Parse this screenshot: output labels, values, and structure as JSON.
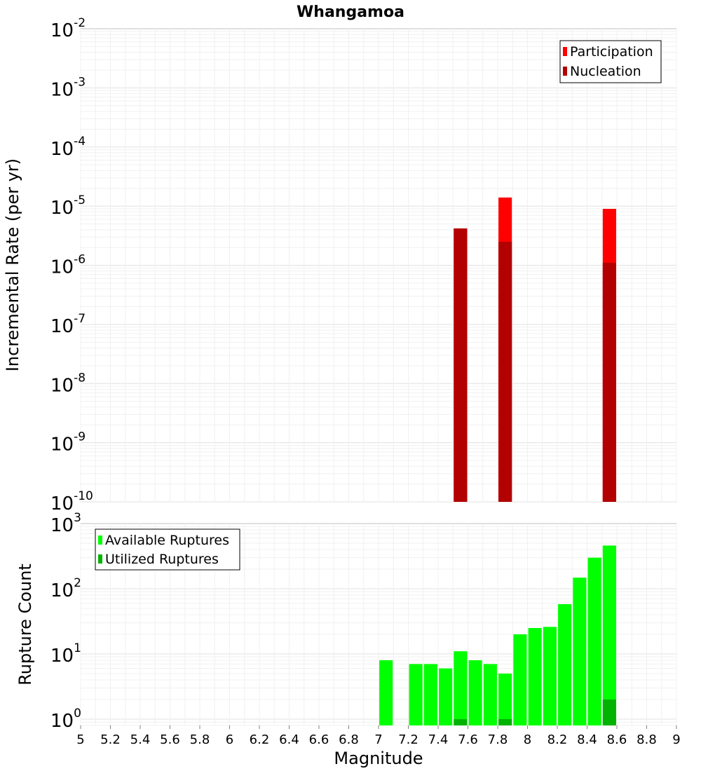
{
  "title": "Whangamoa",
  "chart_data": [
    {
      "type": "bar",
      "title": "Whangamoa",
      "ylabel": "Incremental Rate (per yr)",
      "yscale": "log",
      "ylim": [
        1e-10,
        0.01
      ],
      "xlim": [
        5,
        9
      ],
      "bar_width": 0.09,
      "grid": true,
      "legend_position": "top-right",
      "series": [
        {
          "name": "Participation",
          "color": "#ff0000",
          "x": [
            7.55,
            7.85,
            8.55
          ],
          "values": [
            4.2e-06,
            1.4e-05,
            9e-06
          ]
        },
        {
          "name": "Nucleation",
          "color": "#b30000",
          "x": [
            7.55,
            7.85,
            8.55
          ],
          "values": [
            4.2e-06,
            2.5e-06,
            1.1e-06
          ]
        }
      ]
    },
    {
      "type": "bar",
      "ylabel": "Rupture Count",
      "xlabel": "Magnitude",
      "yscale": "log",
      "ylim": [
        0.8,
        1000
      ],
      "xlim": [
        5,
        9
      ],
      "bar_width": 0.09,
      "grid": true,
      "legend_position": "top-left",
      "x_ticks": [
        "5",
        "5.2",
        "5.4",
        "5.6",
        "5.8",
        "6",
        "6.2",
        "6.4",
        "6.6",
        "6.8",
        "7",
        "7.2",
        "7.4",
        "7.6",
        "7.8",
        "8",
        "8.2",
        "8.4",
        "8.6",
        "8.8",
        "9"
      ],
      "series": [
        {
          "name": "Available Ruptures",
          "color": "#00ff00",
          "x": [
            7.05,
            7.25,
            7.35,
            7.45,
            7.55,
            7.65,
            7.75,
            7.85,
            7.95,
            8.05,
            8.15,
            8.25,
            8.35,
            8.45,
            8.55
          ],
          "values": [
            8,
            7,
            7,
            6,
            11,
            8,
            7,
            5,
            20,
            25,
            26,
            58,
            148,
            300,
            460
          ]
        },
        {
          "name": "Utilized Ruptures",
          "color": "#00b300",
          "x": [
            7.55,
            7.85,
            8.55
          ],
          "values": [
            1,
            1,
            2
          ]
        }
      ]
    }
  ]
}
